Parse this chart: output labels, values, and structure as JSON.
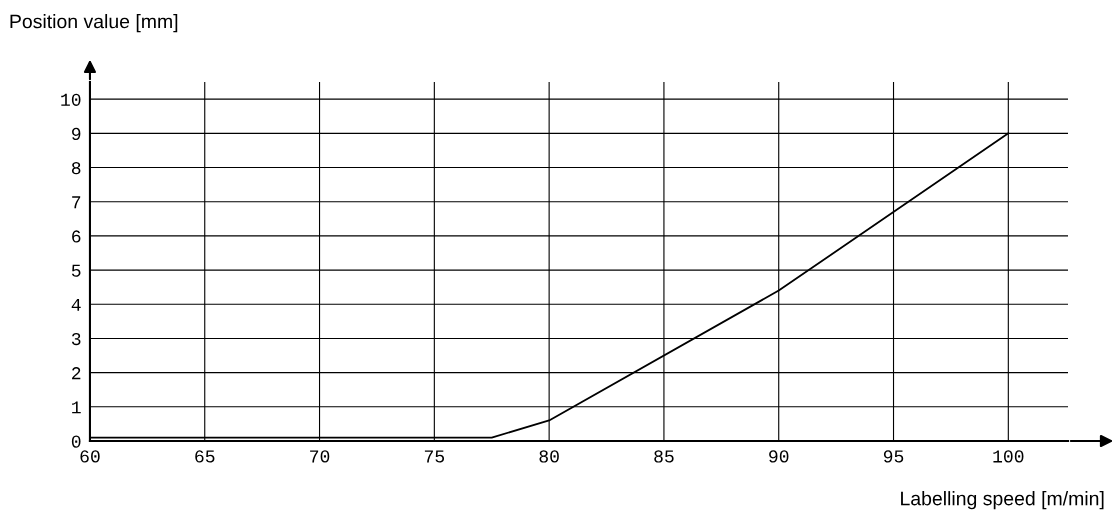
{
  "chart_data": {
    "type": "line",
    "xlabel": "Labelling speed [m/min]",
    "ylabel": "Position value [mm]",
    "x": [
      60,
      77.5,
      80,
      90,
      100
    ],
    "series": [
      {
        "color": "#000000",
        "values": [
          0.1,
          0.1,
          0.6,
          4.4,
          9.0
        ]
      }
    ],
    "xlim": [
      60,
      102.6
    ],
    "ylim": [
      0,
      10.5
    ],
    "xticks": [
      60,
      65,
      70,
      75,
      80,
      85,
      90,
      95,
      100
    ],
    "yticks": [
      0,
      1,
      2,
      3,
      4,
      5,
      6,
      7,
      8,
      9,
      10
    ],
    "grid": true,
    "marker": "none",
    "line_style": "solid"
  }
}
